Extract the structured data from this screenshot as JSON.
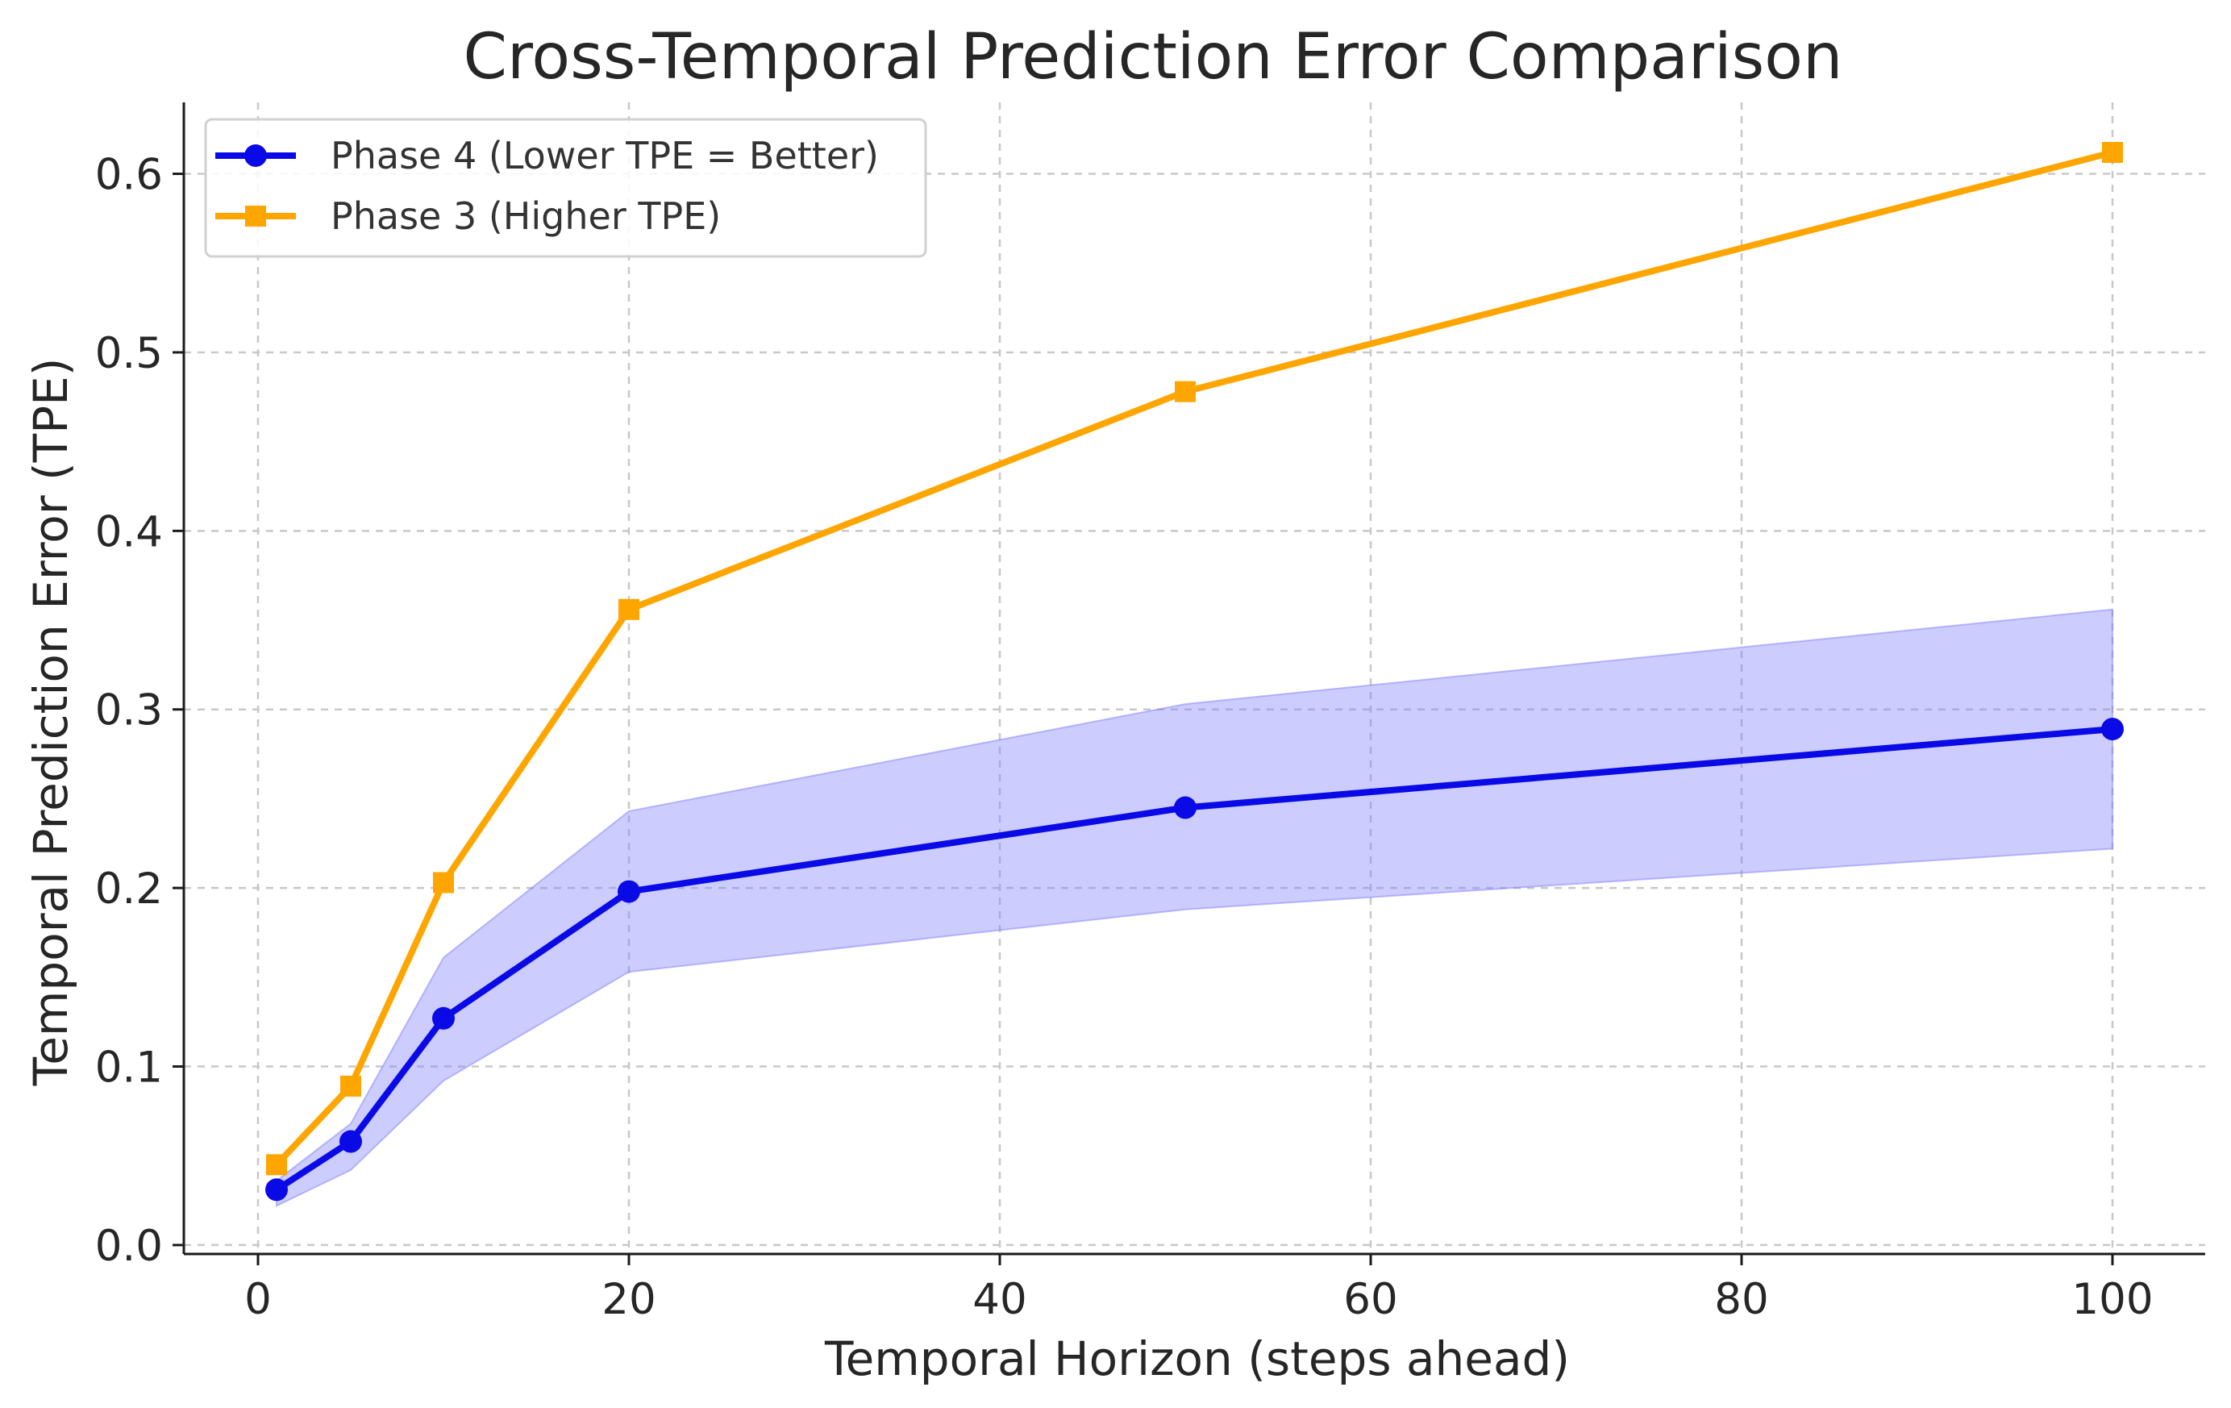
{
  "chart_data": {
    "type": "line",
    "title": "Cross-Temporal Prediction Error Comparison",
    "xlabel": "Temporal Horizon (steps ahead)",
    "ylabel": "Temporal Prediction Error (TPE)",
    "xlim": [
      -4,
      105
    ],
    "ylim": [
      -0.005,
      0.64
    ],
    "xticks": [
      0,
      20,
      40,
      60,
      80,
      100
    ],
    "yticks": [
      0.0,
      0.1,
      0.2,
      0.3,
      0.4,
      0.5,
      0.6
    ],
    "xtick_labels": [
      "0",
      "20",
      "40",
      "60",
      "80",
      "100"
    ],
    "ytick_labels": [
      "0.0",
      "0.1",
      "0.2",
      "0.3",
      "0.4",
      "0.5",
      "0.6"
    ],
    "grid": true,
    "legend_position": "top-left",
    "series": [
      {
        "name": "Phase 4 (Lower TPE = Better)",
        "color": "#0a0ae6",
        "marker": "circle",
        "x": [
          1,
          5,
          10,
          20,
          50,
          100
        ],
        "y": [
          0.031,
          0.058,
          0.127,
          0.198,
          0.245,
          0.289
        ],
        "band_lower": [
          0.022,
          0.042,
          0.092,
          0.153,
          0.188,
          0.222
        ],
        "band_upper": [
          0.036,
          0.068,
          0.161,
          0.243,
          0.303,
          0.356
        ],
        "band_color": "#8080ff"
      },
      {
        "name": "Phase 3 (Higher TPE)",
        "color": "#ffa500",
        "marker": "square",
        "x": [
          1,
          5,
          10,
          20,
          50,
          100
        ],
        "y": [
          0.045,
          0.089,
          0.203,
          0.356,
          0.478,
          0.612
        ]
      }
    ]
  }
}
